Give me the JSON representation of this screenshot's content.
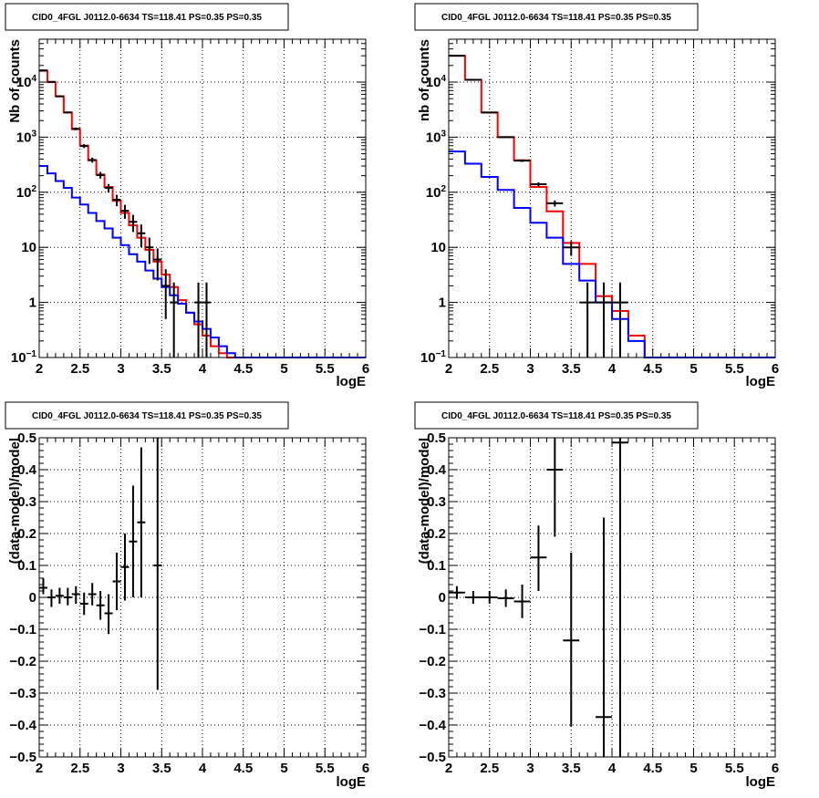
{
  "colors": {
    "model_total": "#ff0000",
    "model_bkg": "#0000ff",
    "data": "#000000",
    "grid": "#000000"
  },
  "chart_data": [
    {
      "type": "line",
      "title": "CID0_4FGL J0112.0-6634 TS=118.41 PS=0.35 PS=0.35",
      "xlabel": "logE",
      "ylabel": "Nb of counts",
      "xlim": [
        2,
        6
      ],
      "ylim": [
        0.1,
        60000
      ],
      "log_y": true,
      "grid": true,
      "xticks": [
        "2",
        "2.5",
        "3",
        "3.5",
        "4",
        "4.5",
        "5",
        "5.5",
        "6"
      ],
      "yticks": [
        {
          "v": 0.1,
          "label": "10^-1"
        },
        {
          "v": 1,
          "label": "1"
        },
        {
          "v": 10,
          "label": "10"
        },
        {
          "v": 100,
          "label": "10^2"
        },
        {
          "v": 1000,
          "label": "10^3"
        },
        {
          "v": 10000,
          "label": "10^4"
        }
      ],
      "bin_edges": [
        2.0,
        2.1,
        2.2,
        2.3,
        2.4,
        2.5,
        2.6,
        2.7,
        2.8,
        2.9,
        3.0,
        3.1,
        3.2,
        3.3,
        3.4,
        3.5,
        3.6,
        3.7,
        3.8,
        3.9,
        4.0,
        4.1,
        4.2,
        4.3,
        4.4,
        4.5,
        4.6,
        4.7,
        4.8,
        4.9,
        5.0,
        5.1,
        5.2,
        5.3,
        5.4,
        5.5,
        5.6,
        5.7,
        5.8,
        5.9,
        6.0
      ],
      "series": [
        {
          "role": "model_total",
          "values": [
            16000,
            10000,
            5500,
            2800,
            1400,
            700,
            380,
            210,
            125,
            70,
            42,
            25,
            15,
            9,
            5.5,
            3.2,
            1.9,
            1.1,
            0.65,
            0.4,
            0.25,
            0.16,
            0.12,
            0.1,
            0.1,
            0.1,
            0.1,
            0.1,
            0.1,
            0.1,
            0.1,
            0.1,
            0.1,
            0.1,
            0.1,
            0.1,
            0.1,
            0.1,
            0.1,
            0.1
          ]
        },
        {
          "role": "model_bkg",
          "values": [
            300,
            220,
            160,
            120,
            80,
            60,
            42,
            30,
            22,
            15,
            11,
            7.5,
            5.5,
            3.8,
            2.7,
            1.9,
            1.35,
            0.95,
            0.65,
            0.45,
            0.33,
            0.23,
            0.16,
            0.12,
            0.1,
            0.1,
            0.1,
            0.1,
            0.1,
            0.1,
            0.1,
            0.1,
            0.1,
            0.1,
            0.1,
            0.1,
            0.1,
            0.1,
            0.1,
            0.1
          ]
        }
      ],
      "points": [
        {
          "x": 2.05,
          "y": 16300,
          "lo": 16050,
          "hi": 16550
        },
        {
          "x": 2.15,
          "y": 10100,
          "lo": 9900,
          "hi": 10300
        },
        {
          "x": 2.25,
          "y": 5520,
          "lo": 5370,
          "hi": 5670
        },
        {
          "x": 2.35,
          "y": 2810,
          "lo": 2700,
          "hi": 2920
        },
        {
          "x": 2.45,
          "y": 1420,
          "lo": 1340,
          "hi": 1500
        },
        {
          "x": 2.55,
          "y": 690,
          "lo": 635,
          "hi": 745
        },
        {
          "x": 2.65,
          "y": 385,
          "lo": 345,
          "hi": 425
        },
        {
          "x": 2.75,
          "y": 205,
          "lo": 177,
          "hi": 233
        },
        {
          "x": 2.85,
          "y": 120,
          "lo": 99,
          "hi": 141
        },
        {
          "x": 2.95,
          "y": 73,
          "lo": 56,
          "hi": 90
        },
        {
          "x": 3.05,
          "y": 46,
          "lo": 33,
          "hi": 59
        },
        {
          "x": 3.15,
          "y": 29,
          "lo": 19,
          "hi": 39
        },
        {
          "x": 3.25,
          "y": 18,
          "lo": 10,
          "hi": 26
        },
        {
          "x": 3.35,
          "y": 10,
          "lo": 5,
          "hi": 15
        },
        {
          "x": 3.45,
          "y": 6,
          "lo": 2.5,
          "hi": 9.5
        },
        {
          "x": 3.55,
          "y": 2,
          "lo": 0.5,
          "hi": 4
        },
        {
          "x": 3.65,
          "y": 1,
          "lo": 0.1,
          "hi": 2.3
        },
        {
          "x": 3.95,
          "y": 1,
          "lo": 0.1,
          "hi": 2.3
        },
        {
          "x": 4.05,
          "y": 1,
          "lo": 0.1,
          "hi": 2.3
        }
      ]
    },
    {
      "type": "line",
      "title": "CID0_4FGL J0112.0-6634 TS=118.41 PS=0.35 PS=0.35",
      "xlabel": "logE",
      "ylabel": "nb of counts",
      "xlim": [
        2,
        6
      ],
      "ylim": [
        0.1,
        60000
      ],
      "log_y": true,
      "grid": true,
      "xticks": [
        "2",
        "2.5",
        "3",
        "3.5",
        "4",
        "4.5",
        "5",
        "5.5",
        "6"
      ],
      "yticks": [
        {
          "v": 0.1,
          "label": "10^-1"
        },
        {
          "v": 1,
          "label": "1"
        },
        {
          "v": 10,
          "label": "10"
        },
        {
          "v": 100,
          "label": "10^2"
        },
        {
          "v": 1000,
          "label": "10^3"
        },
        {
          "v": 10000,
          "label": "10^4"
        }
      ],
      "bin_edges": [
        2.0,
        2.2,
        2.4,
        2.6,
        2.8,
        3.0,
        3.2,
        3.4,
        3.6,
        3.8,
        4.0,
        4.2,
        4.4,
        4.6,
        4.8,
        5.0,
        5.2,
        5.4,
        5.6,
        5.8,
        6.0
      ],
      "series": [
        {
          "role": "model_total",
          "values": [
            30000,
            11000,
            2800,
            1000,
            380,
            125,
            45,
            12,
            5,
            1.3,
            0.7,
            0.25,
            0.1,
            0.1,
            0.1,
            0.1,
            0.1,
            0.1,
            0.1,
            0.1
          ]
        },
        {
          "role": "model_bkg",
          "values": [
            550,
            330,
            190,
            110,
            52,
            28,
            15,
            5,
            2.5,
            1,
            0.5,
            0.2,
            0.1,
            0.1,
            0.1,
            0.1,
            0.1,
            0.1,
            0.1,
            0.1
          ]
        }
      ],
      "points": [
        {
          "x": 2.1,
          "y": 30000,
          "lo": 29800,
          "hi": 30200
        },
        {
          "x": 2.3,
          "y": 11000,
          "lo": 10890,
          "hi": 11110
        },
        {
          "x": 2.5,
          "y": 2800,
          "lo": 2740,
          "hi": 2860
        },
        {
          "x": 2.7,
          "y": 1000,
          "lo": 968,
          "hi": 1032
        },
        {
          "x": 2.9,
          "y": 375,
          "lo": 355,
          "hi": 395
        },
        {
          "x": 3.1,
          "y": 140,
          "lo": 128,
          "hi": 152
        },
        {
          "x": 3.3,
          "y": 63,
          "lo": 55,
          "hi": 71
        },
        {
          "x": 3.5,
          "y": 10,
          "lo": 7,
          "hi": 13
        },
        {
          "x": 3.7,
          "y": 1,
          "lo": 0.1,
          "hi": 2.3
        },
        {
          "x": 3.9,
          "y": 1,
          "lo": 0.1,
          "hi": 2.3
        },
        {
          "x": 4.1,
          "y": 1,
          "lo": 0.1,
          "hi": 2.3
        }
      ]
    },
    {
      "type": "scatter",
      "title": "CID0_4FGL J0112.0-6634 TS=118.41 PS=0.35 PS=0.35",
      "xlabel": "logE",
      "ylabel": "(data-model)/model",
      "xlim": [
        2,
        6
      ],
      "ylim": [
        -0.5,
        0.5
      ],
      "grid": true,
      "xticks": [
        "2",
        "2.5",
        "3",
        "3.5",
        "4",
        "4.5",
        "5",
        "5.5",
        "6"
      ],
      "yticks": [
        {
          "v": -0.5,
          "label": "−0.5"
        },
        {
          "v": -0.4,
          "label": "−0.4"
        },
        {
          "v": -0.3,
          "label": "−0.3"
        },
        {
          "v": -0.2,
          "label": "−0.2"
        },
        {
          "v": -0.1,
          "label": "−0.1"
        },
        {
          "v": 0,
          "label": "0"
        },
        {
          "v": 0.1,
          "label": "0.1"
        },
        {
          "v": 0.2,
          "label": "0.2"
        },
        {
          "v": 0.3,
          "label": "0.3"
        },
        {
          "v": 0.4,
          "label": "0.4"
        },
        {
          "v": 0.5,
          "label": "0.5"
        }
      ],
      "half_width": 0.05,
      "points": [
        {
          "x": 2.05,
          "y": 0.03,
          "lo": 0.01,
          "hi": 0.06
        },
        {
          "x": 2.15,
          "y": 0.0,
          "lo": -0.03,
          "hi": 0.025
        },
        {
          "x": 2.25,
          "y": 0.005,
          "lo": -0.02,
          "hi": 0.03
        },
        {
          "x": 2.35,
          "y": 0.0,
          "lo": -0.025,
          "hi": 0.03
        },
        {
          "x": 2.45,
          "y": 0.01,
          "lo": -0.02,
          "hi": 0.035
        },
        {
          "x": 2.55,
          "y": -0.02,
          "lo": -0.055,
          "hi": 0.015
        },
        {
          "x": 2.65,
          "y": 0.01,
          "lo": -0.025,
          "hi": 0.045
        },
        {
          "x": 2.75,
          "y": -0.025,
          "lo": -0.07,
          "hi": 0.02
        },
        {
          "x": 2.85,
          "y": -0.05,
          "lo": -0.115,
          "hi": 0.01
        },
        {
          "x": 2.95,
          "y": 0.05,
          "lo": -0.04,
          "hi": 0.14
        },
        {
          "x": 3.05,
          "y": 0.095,
          "lo": -0.01,
          "hi": 0.2
        },
        {
          "x": 3.15,
          "y": 0.175,
          "lo": 0.0,
          "hi": 0.35
        },
        {
          "x": 3.25,
          "y": 0.235,
          "lo": 0.0,
          "hi": 0.47
        },
        {
          "x": 3.45,
          "y": 0.1,
          "lo": -0.29,
          "hi": 0.5
        }
      ]
    },
    {
      "type": "scatter",
      "title": "CID0_4FGL J0112.0-6634 TS=118.41 PS=0.35 PS=0.35",
      "xlabel": "logE",
      "ylabel": "(data-model)/model",
      "xlim": [
        2,
        6
      ],
      "ylim": [
        -0.5,
        0.5
      ],
      "grid": true,
      "xticks": [
        "2",
        "2.5",
        "3",
        "3.5",
        "4",
        "4.5",
        "5",
        "5.5",
        "6"
      ],
      "yticks": [
        {
          "v": -0.5,
          "label": "−0.5"
        },
        {
          "v": -0.4,
          "label": "−0.4"
        },
        {
          "v": -0.3,
          "label": "−0.3"
        },
        {
          "v": -0.2,
          "label": "−0.2"
        },
        {
          "v": -0.1,
          "label": "−0.1"
        },
        {
          "v": 0,
          "label": "0"
        },
        {
          "v": 0.1,
          "label": "0.1"
        },
        {
          "v": 0.2,
          "label": "0.2"
        },
        {
          "v": 0.3,
          "label": "0.3"
        },
        {
          "v": 0.4,
          "label": "0.4"
        },
        {
          "v": 0.5,
          "label": "0.5"
        }
      ],
      "half_width": 0.1,
      "points": [
        {
          "x": 2.1,
          "y": 0.015,
          "lo": -0.005,
          "hi": 0.035
        },
        {
          "x": 2.3,
          "y": 0.0,
          "lo": -0.02,
          "hi": 0.02
        },
        {
          "x": 2.5,
          "y": 0.0,
          "lo": -0.02,
          "hi": 0.02
        },
        {
          "x": 2.7,
          "y": -0.003,
          "lo": -0.03,
          "hi": 0.025
        },
        {
          "x": 2.9,
          "y": -0.013,
          "lo": -0.065,
          "hi": 0.04
        },
        {
          "x": 3.1,
          "y": 0.125,
          "lo": 0.02,
          "hi": 0.225
        },
        {
          "x": 3.3,
          "y": 0.4,
          "lo": 0.19,
          "hi": 0.5
        },
        {
          "x": 3.5,
          "y": -0.135,
          "lo": -0.405,
          "hi": 0.14
        },
        {
          "x": 3.9,
          "y": -0.375,
          "lo": -0.5,
          "hi": 0.25
        },
        {
          "x": 4.1,
          "y": 0.485,
          "lo": -0.5,
          "hi": 0.5
        }
      ]
    }
  ]
}
